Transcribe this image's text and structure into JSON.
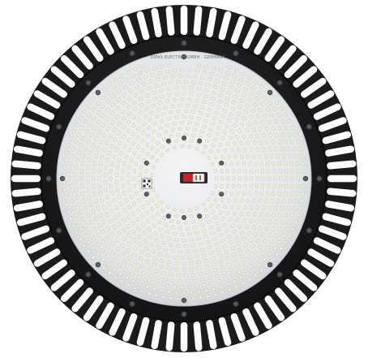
{
  "photo": {
    "subject": "round-led-high-bay-light-fixture",
    "pcb_marking": "DIFAS ELECTRIC GMBH · GERMANY",
    "colors": {
      "background": "#ffffff",
      "housing": "#1b1b1d",
      "fin": "#202022",
      "fin_gap": "#ffffff",
      "board": "#e8ebee",
      "led": "#f4f1df",
      "led_rim": "#c9c2a0",
      "screw": "#55575b",
      "connector_red": "#c4232a"
    }
  }
}
